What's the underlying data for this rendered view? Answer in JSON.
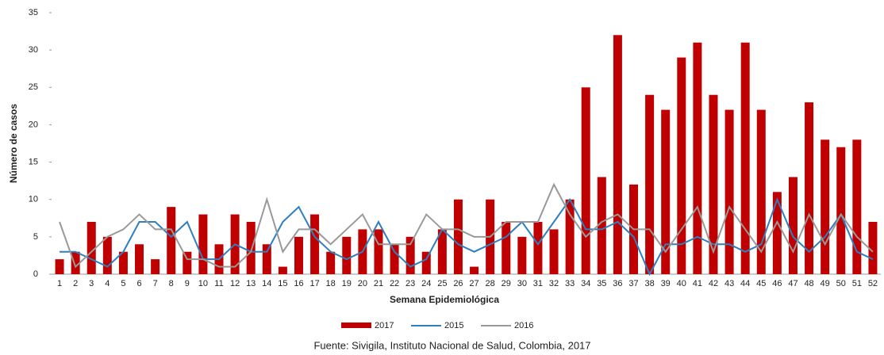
{
  "chart_data": {
    "type": "bar",
    "x_label": "Semana Epidemiológica",
    "y_label": "Número de casos",
    "source": "Fuente: Sivigila, Instituto Nacional de Salud, Colombia, 2017",
    "categories": [
      "1",
      "2",
      "3",
      "4",
      "5",
      "6",
      "7",
      "8",
      "9",
      "10",
      "11",
      "12",
      "13",
      "14",
      "15",
      "16",
      "17",
      "18",
      "19",
      "20",
      "21",
      "22",
      "23",
      "24",
      "25",
      "26",
      "27",
      "28",
      "29",
      "30",
      "31",
      "32",
      "33",
      "34",
      "35",
      "36",
      "37",
      "38",
      "39",
      "40",
      "41",
      "42",
      "43",
      "44",
      "45",
      "46",
      "47",
      "48",
      "49",
      "50",
      "51",
      "52"
    ],
    "series": [
      {
        "name": "2017",
        "type": "bar",
        "color": "#c00000",
        "values": [
          2,
          3,
          7,
          5,
          3,
          4,
          2,
          9,
          3,
          8,
          4,
          8,
          7,
          4,
          1,
          5,
          8,
          3,
          5,
          6,
          6,
          4,
          5,
          3,
          6,
          10,
          1,
          10,
          7,
          5,
          7,
          6,
          10,
          25,
          13,
          32,
          12,
          24,
          22,
          29,
          31,
          24,
          22,
          31,
          22,
          11,
          13,
          23,
          18,
          17,
          18,
          7
        ]
      },
      {
        "name": "2015",
        "type": "line",
        "color": "#2e7fc0",
        "values": [
          3,
          3,
          2,
          1,
          3,
          7,
          7,
          5,
          7,
          2,
          2,
          4,
          3,
          3,
          7,
          9,
          5,
          3,
          2,
          3,
          7,
          3,
          1,
          2,
          6,
          4,
          3,
          4,
          5,
          7,
          4,
          7,
          10,
          6,
          6,
          7,
          5,
          0,
          4,
          4,
          5,
          4,
          4,
          3,
          4,
          10,
          5,
          3,
          5,
          8,
          3,
          2
        ]
      },
      {
        "name": "2016",
        "type": "line",
        "color": "#999999",
        "values": [
          7,
          1,
          3,
          5,
          6,
          8,
          6,
          6,
          2,
          2,
          1,
          1,
          3,
          10,
          3,
          6,
          6,
          4,
          6,
          8,
          4,
          4,
          4,
          8,
          6,
          6,
          5,
          5,
          7,
          7,
          7,
          12,
          8,
          5,
          7,
          8,
          6,
          6,
          3,
          6,
          9,
          3,
          9,
          6,
          3,
          7,
          3,
          8,
          4,
          8,
          5,
          3
        ]
      }
    ],
    "ylim": [
      0,
      35
    ],
    "yticks": [
      0,
      5,
      10,
      15,
      20,
      25,
      30,
      35
    ]
  }
}
